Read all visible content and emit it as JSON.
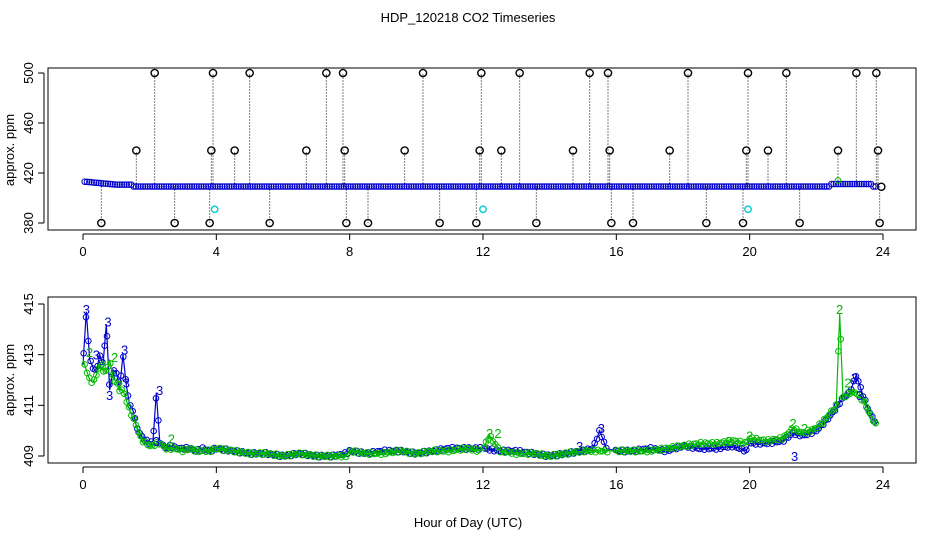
{
  "title": "HDP_120218  CO2 Timeseries",
  "xlabel": "Hour of Day (UTC)",
  "colors": {
    "blue": "#0000cc",
    "green": "#00bb00",
    "cyan": "#00cccc",
    "black": "#000000"
  },
  "chart_data": [
    {
      "type": "scatter",
      "panel": "top",
      "ylabel": "approx. ppm",
      "xlim": [
        0,
        24
      ],
      "ylim": [
        380,
        500
      ],
      "xticks": [
        0,
        4,
        8,
        12,
        16,
        20,
        24
      ],
      "yticks": [
        380,
        420,
        460,
        500
      ],
      "grid": false,
      "baseline_ppm": 409.2,
      "spikes_high": [
        2.15,
        3.9,
        5.0,
        7.3,
        7.8,
        10.2,
        11.95,
        13.1,
        15.2,
        15.75,
        18.15,
        19.95,
        21.1,
        23.2,
        23.8
      ],
      "spikes_mid_438": [
        1.6,
        3.85,
        4.55,
        6.7,
        7.85,
        9.65,
        11.9,
        12.55,
        14.7,
        15.8,
        17.6,
        19.9,
        20.55,
        22.65,
        23.85
      ],
      "spikes_low": [
        0.55,
        2.75,
        3.8,
        5.6,
        7.9,
        8.55,
        10.7,
        11.8,
        13.6,
        15.85,
        16.5,
        18.7,
        19.8,
        21.5,
        23.9
      ],
      "cyan_points": [
        [
          3.95,
          391
        ],
        [
          12.0,
          391
        ],
        [
          19.95,
          391
        ]
      ],
      "last_point": [
        23.95,
        409
      ]
    },
    {
      "type": "line",
      "panel": "bottom",
      "ylabel": "approx. ppm",
      "xlim": [
        0,
        24
      ],
      "ylim": [
        409,
        415
      ],
      "xticks": [
        0,
        4,
        8,
        12,
        16,
        20,
        24
      ],
      "yticks": [
        409,
        411,
        413,
        415
      ],
      "grid": false,
      "series": [
        {
          "color": "blue",
          "x": [
            0.0,
            0.1,
            0.2,
            0.3,
            0.4,
            0.5,
            0.6,
            0.7,
            0.8,
            0.9,
            1.0,
            1.1,
            1.2,
            1.3,
            1.4,
            1.5,
            1.6,
            1.7,
            1.8,
            1.9,
            2.0,
            2.1,
            2.2,
            2.3,
            2.4,
            2.5,
            2.6,
            2.8,
            3.0,
            3.2,
            3.4,
            3.6,
            3.8,
            4.0,
            4.5,
            5.0,
            5.5,
            6.0,
            6.5,
            7.0,
            7.5,
            7.9,
            8.0,
            8.5,
            9.0,
            9.5,
            10.0,
            10.5,
            11.0,
            11.5,
            11.9,
            12.0,
            12.5,
            13.0,
            13.5,
            14.0,
            14.5,
            15.0,
            15.3,
            15.5,
            15.7,
            16.0,
            16.5,
            17.0,
            17.5,
            18.0,
            18.5,
            19.0,
            19.5,
            19.9,
            20.0,
            20.5,
            21.0,
            21.3,
            21.6,
            22.0,
            22.3,
            22.6,
            22.8,
            23.0,
            23.2,
            23.4,
            23.6,
            23.8
          ],
          "y": [
            412.6,
            414.7,
            412.8,
            412.5,
            412.3,
            413.0,
            412.6,
            414.2,
            411.6,
            412.4,
            412.3,
            411.7,
            413.0,
            411.8,
            411.0,
            410.8,
            410.2,
            409.9,
            409.7,
            409.6,
            409.5,
            409.6,
            411.5,
            409.6,
            409.4,
            409.3,
            409.4,
            409.3,
            409.3,
            409.3,
            409.2,
            409.3,
            409.2,
            409.3,
            409.2,
            409.1,
            409.1,
            409.0,
            409.1,
            409.0,
            409.0,
            409.1,
            409.2,
            409.1,
            409.2,
            409.2,
            409.1,
            409.2,
            409.3,
            409.3,
            409.3,
            409.3,
            409.2,
            409.2,
            409.1,
            409.0,
            409.1,
            409.2,
            409.3,
            410.0,
            409.3,
            409.2,
            409.2,
            409.3,
            409.2,
            409.4,
            409.3,
            409.3,
            409.4,
            409.2,
            409.5,
            409.5,
            409.6,
            409.9,
            409.8,
            410.0,
            410.4,
            410.9,
            411.3,
            411.5,
            412.2,
            411.4,
            410.7,
            410.3
          ]
        },
        {
          "color": "green",
          "x": [
            0.0,
            0.1,
            0.2,
            0.3,
            0.4,
            0.5,
            0.6,
            0.7,
            0.8,
            0.9,
            1.0,
            1.1,
            1.2,
            1.3,
            1.4,
            1.5,
            1.6,
            1.7,
            1.8,
            1.9,
            2.0,
            2.1,
            2.2,
            2.3,
            2.4,
            2.5,
            2.6,
            2.8,
            3.0,
            3.2,
            3.4,
            3.6,
            3.8,
            4.0,
            4.5,
            5.0,
            5.5,
            6.0,
            6.5,
            7.0,
            7.5,
            7.9,
            8.0,
            8.5,
            9.0,
            9.5,
            10.0,
            10.5,
            11.0,
            11.5,
            11.9,
            12.0,
            12.2,
            12.5,
            13.0,
            13.5,
            14.0,
            14.5,
            15.0,
            15.5,
            15.7,
            16.0,
            16.5,
            17.0,
            17.5,
            18.0,
            18.5,
            19.0,
            19.5,
            19.9,
            20.0,
            20.5,
            21.0,
            21.3,
            21.6,
            22.0,
            22.3,
            22.6,
            22.7,
            22.8,
            23.0,
            23.2,
            23.4,
            23.6,
            23.8
          ],
          "y": [
            412.8,
            412.4,
            412.0,
            411.9,
            412.2,
            412.6,
            412.4,
            412.3,
            412.8,
            412.1,
            411.9,
            411.6,
            411.6,
            411.2,
            410.8,
            410.5,
            410.2,
            409.8,
            409.6,
            409.5,
            409.4,
            409.4,
            409.5,
            409.5,
            409.4,
            409.3,
            409.3,
            409.3,
            409.2,
            409.3,
            409.2,
            409.2,
            409.2,
            409.3,
            409.2,
            409.1,
            409.1,
            409.0,
            409.1,
            409.0,
            409.0,
            409.0,
            409.2,
            409.1,
            409.1,
            409.2,
            409.1,
            409.2,
            409.2,
            409.3,
            409.2,
            409.3,
            409.8,
            409.2,
            409.1,
            409.1,
            409.0,
            409.1,
            409.2,
            409.2,
            409.2,
            409.2,
            409.2,
            409.2,
            409.3,
            409.4,
            409.5,
            409.5,
            409.6,
            409.5,
            409.7,
            409.6,
            409.7,
            410.1,
            409.9,
            410.1,
            410.5,
            411.0,
            414.6,
            411.3,
            411.5,
            411.5,
            411.2,
            410.7,
            410.2
          ]
        }
      ]
    }
  ]
}
